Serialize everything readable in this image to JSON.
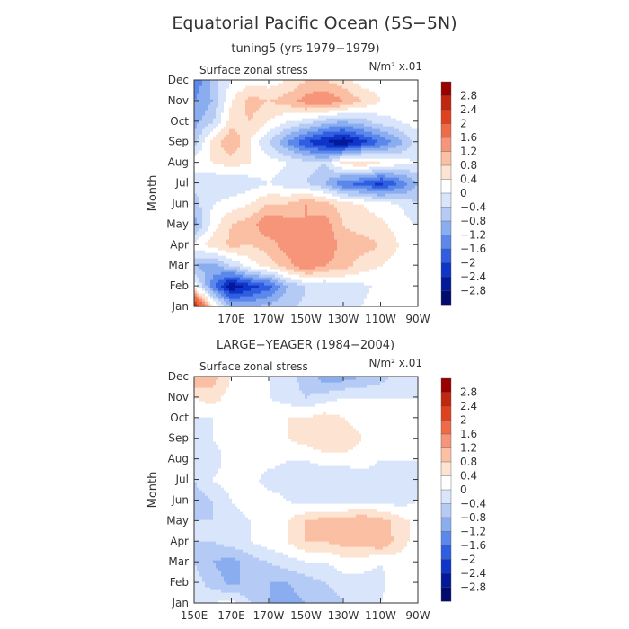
{
  "figure": {
    "title": "Equatorial Pacific Ocean (5S−5N)"
  },
  "colorscale": {
    "levels": [
      "2.8",
      "2.4",
      "2",
      "1.6",
      "1.2",
      "0.8",
      "0.4",
      "0",
      "−0.4",
      "−0.8",
      "−1.2",
      "−1.6",
      "−2",
      "−2.4",
      "−2.8"
    ],
    "colors": [
      "#990000",
      "#c1270f",
      "#e0421d",
      "#ef6b48",
      "#f7957a",
      "#fbbfa4",
      "#fde4d2",
      "#ffffff",
      "#d8e5fa",
      "#b5cbf5",
      "#8aadf0",
      "#5b88ea",
      "#2f5fe0",
      "#0f35c8",
      "#021a9a",
      "#020c6e"
    ]
  },
  "chart_data": [
    {
      "type": "heatmap",
      "title": "tuning5 (yrs 1979−1979)",
      "variable_label": "Surface zonal stress",
      "units_label": "N/m² x.01",
      "ylabel": "Month",
      "xlabel": "",
      "x_ticks": [
        "",
        "170E",
        "170W",
        "150W",
        "130W",
        "110W",
        "90W"
      ],
      "y_ticks": [
        "Jan",
        "Feb",
        "Mar",
        "Apr",
        "May",
        "Jun",
        "Jul",
        "Aug",
        "Sep",
        "Oct",
        "Nov",
        "Dec"
      ],
      "x_range": [
        "150E",
        "90W"
      ],
      "clim": [
        -2.8,
        2.8
      ],
      "x_grid": [
        150,
        160,
        170,
        180,
        190,
        200,
        210,
        220,
        230,
        240,
        250,
        260,
        270
      ],
      "values": [
        [
          3.0,
          0.6,
          -0.8,
          -0.9,
          -0.6,
          -0.5,
          -0.3,
          -0.2,
          -0.1,
          0.0,
          0.2,
          0.2,
          0.2
        ],
        [
          0.3,
          -1.4,
          -2.8,
          -2.2,
          -1.8,
          -0.8,
          -0.4,
          -0.4,
          -0.2,
          -0.1,
          0.1,
          0.2,
          0.3
        ],
        [
          -0.8,
          -1.0,
          -0.4,
          0.2,
          0.6,
          1.0,
          1.6,
          1.2,
          1.0,
          0.6,
          0.4,
          0.2,
          0.2
        ],
        [
          0.2,
          0.6,
          0.9,
          0.8,
          1.0,
          1.4,
          1.4,
          1.6,
          1.0,
          1.0,
          0.8,
          0.4,
          0.2
        ],
        [
          -1.0,
          0.2,
          0.8,
          1.0,
          1.6,
          1.4,
          1.2,
          1.4,
          0.8,
          0.6,
          0.5,
          0.2,
          0.0
        ],
        [
          -0.6,
          0.0,
          0.2,
          0.4,
          0.8,
          0.8,
          1.2,
          1.0,
          0.6,
          0.4,
          0.2,
          0.0,
          -0.4
        ],
        [
          -0.2,
          -0.4,
          -0.4,
          -0.2,
          0.0,
          -0.2,
          -0.4,
          -0.8,
          -1.6,
          -1.8,
          -2.2,
          -1.6,
          -0.8
        ],
        [
          0.2,
          0.4,
          0.6,
          0.4,
          0.2,
          0.0,
          -0.2,
          -0.4,
          0.6,
          0.8,
          0.4,
          0.2,
          0.0
        ],
        [
          -0.6,
          0.6,
          1.2,
          0.4,
          -0.4,
          -1.2,
          -2.0,
          -2.4,
          -2.8,
          -2.2,
          -1.6,
          -1.0,
          -0.2
        ],
        [
          -1.0,
          -0.4,
          0.6,
          0.8,
          0.4,
          0.0,
          -0.2,
          -0.6,
          -0.8,
          -0.6,
          -0.2,
          0.0,
          0.2
        ],
        [
          -1.2,
          -0.8,
          0.4,
          1.0,
          0.8,
          1.0,
          1.4,
          1.6,
          1.2,
          0.8,
          0.4,
          0.2,
          0.2
        ],
        [
          -1.6,
          -0.6,
          0.0,
          0.2,
          0.2,
          0.4,
          0.8,
          0.8,
          0.6,
          0.2,
          0.2,
          0.2,
          0.2
        ]
      ]
    },
    {
      "type": "heatmap",
      "title": "LARGE−YEAGER (1984−2004)",
      "variable_label": "Surface zonal stress",
      "units_label": "N/m² x.01",
      "ylabel": "Month",
      "xlabel": "",
      "x_ticks": [
        "150E",
        "170E",
        "170W",
        "150W",
        "130W",
        "110W",
        "90W"
      ],
      "y_ticks": [
        "Jan",
        "Feb",
        "Mar",
        "Apr",
        "May",
        "Jun",
        "Jul",
        "Aug",
        "Sep",
        "Oct",
        "Nov",
        "Dec"
      ],
      "x_range": [
        "150E",
        "90W"
      ],
      "clim": [
        -2.8,
        2.8
      ],
      "x_grid": [
        150,
        160,
        170,
        180,
        190,
        200,
        210,
        220,
        230,
        240,
        250,
        260,
        270
      ],
      "values": [
        [
          -0.2,
          0.0,
          0.2,
          -0.4,
          -0.8,
          -1.0,
          -0.8,
          -0.8,
          -0.4,
          -0.2,
          0.0,
          0.2,
          0.2
        ],
        [
          -0.2,
          -0.6,
          -0.9,
          -0.7,
          -0.8,
          -0.8,
          -0.6,
          -0.4,
          -0.2,
          -0.2,
          -0.1,
          0.2,
          0.2
        ],
        [
          -0.4,
          -0.8,
          -1.0,
          -0.6,
          -0.4,
          -0.2,
          0.0,
          0.0,
          0.2,
          0.2,
          0.0,
          0.2,
          0.2
        ],
        [
          -0.4,
          -0.4,
          -0.2,
          0.0,
          0.2,
          0.4,
          0.8,
          0.8,
          1.0,
          1.0,
          1.2,
          0.6,
          0.2
        ],
        [
          -0.4,
          -0.4,
          -0.2,
          0.0,
          0.2,
          0.4,
          0.8,
          1.0,
          1.0,
          1.2,
          1.0,
          0.6,
          0.2
        ],
        [
          -0.6,
          -0.4,
          0.0,
          0.2,
          0.2,
          0.0,
          -0.2,
          -0.2,
          -0.2,
          -0.2,
          -0.2,
          -0.2,
          0.0
        ],
        [
          -0.4,
          0.0,
          0.2,
          0.2,
          -0.2,
          -0.2,
          -0.4,
          -0.4,
          -0.4,
          -0.2,
          -0.2,
          -0.2,
          0.0
        ],
        [
          -0.4,
          -0.2,
          0.2,
          0.2,
          0.2,
          0.0,
          0.0,
          0.2,
          0.2,
          0.2,
          0.0,
          0.0,
          0.0
        ],
        [
          -0.2,
          0.0,
          0.2,
          0.2,
          0.2,
          0.4,
          0.6,
          0.8,
          0.8,
          0.4,
          0.2,
          0.0,
          0.0
        ],
        [
          0.0,
          0.0,
          0.2,
          0.2,
          0.4,
          0.4,
          0.4,
          0.6,
          0.4,
          0.2,
          0.0,
          0.0,
          0.0
        ],
        [
          0.4,
          0.6,
          0.2,
          0.2,
          0.0,
          -0.2,
          -0.4,
          -0.2,
          0.0,
          0.0,
          0.0,
          0.0,
          0.0
        ],
        [
          1.2,
          1.0,
          0.4,
          0.2,
          0.0,
          -0.2,
          -0.6,
          -1.0,
          -1.0,
          -0.8,
          -0.6,
          -0.2,
          0.0
        ]
      ]
    }
  ]
}
